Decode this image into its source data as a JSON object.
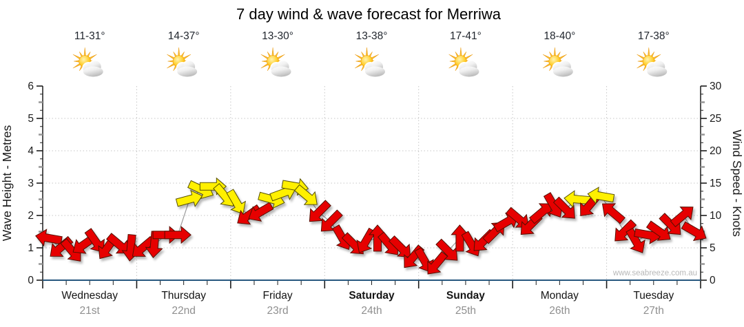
{
  "page": {
    "title": "7 day wind & wave forecast for Merriwa",
    "background": "#ffffff"
  },
  "chart_data": {
    "type": "line",
    "title": "7 day wind & wave forecast for Merriwa",
    "watermark": "www.seabreeze.com.au",
    "days": [
      {
        "name": "Wednesday",
        "date": "21st",
        "temp": "11-31°",
        "icon": "sun-behind-cloud",
        "weekend": false
      },
      {
        "name": "Thursday",
        "date": "22nd",
        "temp": "14-37°",
        "icon": "sun-behind-cloud",
        "weekend": false
      },
      {
        "name": "Friday",
        "date": "23rd",
        "temp": "13-30°",
        "icon": "sun-behind-cloud",
        "weekend": false
      },
      {
        "name": "Saturday",
        "date": "24th",
        "temp": "13-38°",
        "icon": "sun-behind-cloud",
        "weekend": true
      },
      {
        "name": "Sunday",
        "date": "25th",
        "temp": "17-41°",
        "icon": "sun-behind-cloud",
        "weekend": true
      },
      {
        "name": "Monday",
        "date": "26th",
        "temp": "18-40°",
        "icon": "sun-behind-cloud",
        "weekend": false
      },
      {
        "name": "Tuesday",
        "date": "27th",
        "temp": "17-38°",
        "icon": "sun-behind-cloud",
        "weekend": false
      }
    ],
    "yleft": {
      "label": "Wave Height - Metres",
      "min": 0,
      "max": 6,
      "major_ticks": [
        0,
        1,
        2,
        3,
        4,
        5,
        6
      ]
    },
    "yright": {
      "label": "Wind Speed - Knots",
      "min": 0,
      "max": 30,
      "major_ticks": [
        0,
        5,
        10,
        15,
        20,
        25,
        30
      ]
    },
    "points_per_day": 8,
    "wind": {
      "units": "knots",
      "knots": [
        6.5,
        5,
        4.5,
        5.5,
        6,
        5,
        5.5,
        5,
        5,
        5.5,
        7,
        7,
        12.5,
        14,
        14.5,
        13,
        12,
        10,
        10.5,
        12.5,
        13.5,
        14.5,
        13,
        10.5,
        9,
        6.5,
        5.5,
        6,
        6.5,
        5.5,
        5,
        3.5,
        3,
        2.5,
        4.5,
        6.5,
        5.5,
        6,
        7.5,
        9,
        9.5,
        8.5,
        10.5,
        11.5,
        11,
        12.5,
        11.5,
        13,
        10.5,
        7.5,
        6,
        7,
        7.5,
        8.5,
        10,
        7.5
      ],
      "dir_deg": [
        190,
        140,
        50,
        145,
        55,
        125,
        40,
        95,
        140,
        95,
        0,
        0,
        -15,
        25,
        0,
        50,
        60,
        145,
        150,
        15,
        -20,
        10,
        40,
        135,
        135,
        60,
        45,
        120,
        -90,
        50,
        45,
        130,
        60,
        130,
        45,
        -90,
        60,
        135,
        -45,
        -30,
        40,
        135,
        -40,
        60,
        45,
        185,
        130,
        190,
        220,
        135,
        60,
        10,
        35,
        45,
        -40,
        30
      ]
    },
    "style": {
      "arrow_low_color": "#e60303",
      "arrow_low_stroke": "#551000",
      "arrow_high_color": "#fff000",
      "arrow_high_stroke": "#565000",
      "high_threshold_knots": 12,
      "line_color": "#9b9b9b",
      "grid_color": "#c6c6c6",
      "baseline_color": "#25567e",
      "axis_color": "#1a1a1a",
      "date_color": "#8f8f8f",
      "watermark_color": "#b8b8b8"
    }
  }
}
